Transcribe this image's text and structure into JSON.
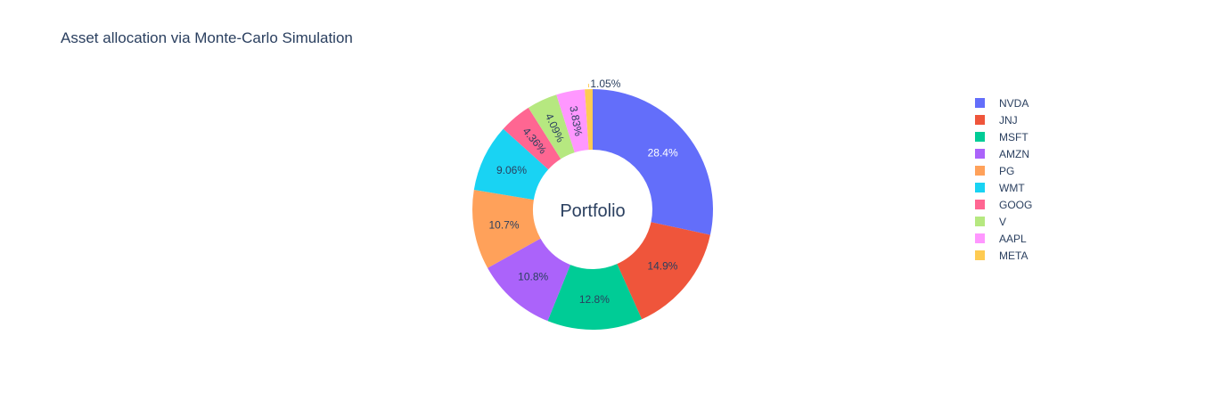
{
  "chart_data": {
    "type": "pie",
    "title": "Asset allocation via Monte-Carlo Simulation",
    "hole_text": "Portfolio",
    "legend_position": "right",
    "slices": [
      {
        "label": "NVDA",
        "value": 28.4,
        "text": "28.4%",
        "color": "#636efa",
        "text_color": "#ffffff",
        "text_position": "inside"
      },
      {
        "label": "JNJ",
        "value": 14.9,
        "text": "14.9%",
        "color": "#ef553b",
        "text_color": "#2a3f5f",
        "text_position": "inside"
      },
      {
        "label": "MSFT",
        "value": 12.8,
        "text": "12.8%",
        "color": "#00cc96",
        "text_color": "#2a3f5f",
        "text_position": "inside"
      },
      {
        "label": "AMZN",
        "value": 10.8,
        "text": "10.8%",
        "color": "#ab63fa",
        "text_color": "#2a3f5f",
        "text_position": "inside"
      },
      {
        "label": "PG",
        "value": 10.7,
        "text": "10.7%",
        "color": "#ffa15a",
        "text_color": "#2a3f5f",
        "text_position": "inside"
      },
      {
        "label": "WMT",
        "value": 9.06,
        "text": "9.06%",
        "color": "#19d3f3",
        "text_color": "#2a3f5f",
        "text_position": "inside"
      },
      {
        "label": "GOOG",
        "value": 4.36,
        "text": "4.36%",
        "color": "#ff6692",
        "text_color": "#2a3f5f",
        "text_position": "inside-radial"
      },
      {
        "label": "V",
        "value": 4.09,
        "text": "4.09%",
        "color": "#b6e880",
        "text_color": "#2a3f5f",
        "text_position": "inside-radial"
      },
      {
        "label": "AAPL",
        "value": 3.83,
        "text": "3.83%",
        "color": "#ff97ff",
        "text_color": "#2a3f5f",
        "text_position": "inside-radial"
      },
      {
        "label": "META",
        "value": 1.05,
        "text": "1.05%",
        "color": "#fecb52",
        "text_color": "#2a3f5f",
        "text_position": "outside"
      }
    ]
  }
}
